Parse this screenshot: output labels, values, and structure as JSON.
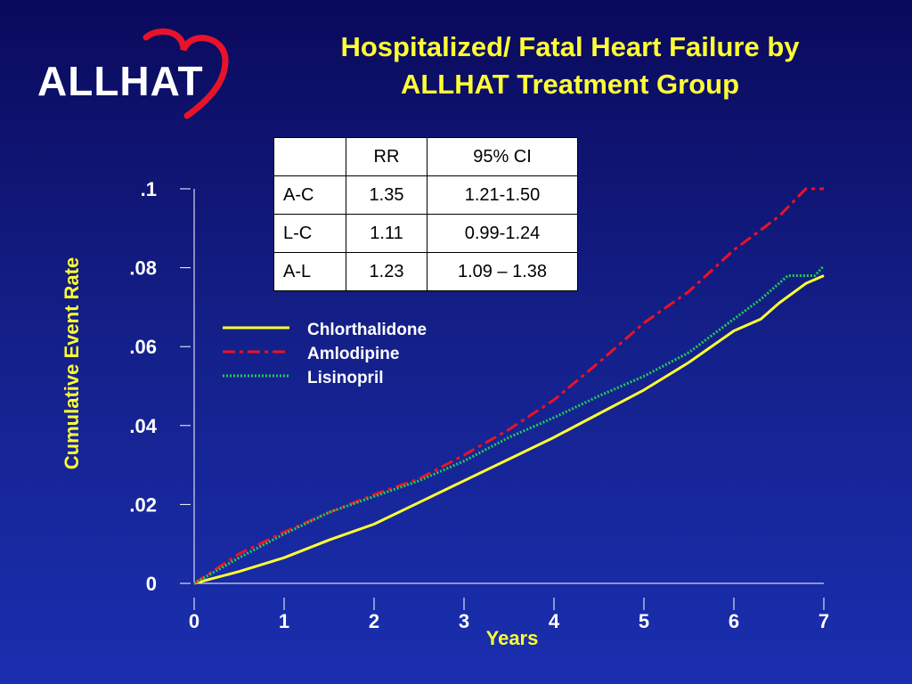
{
  "logo": {
    "text": "ALLHAT",
    "heart_color": "#e8132a"
  },
  "title": {
    "line1": "Hospitalized/ Fatal Heart Failure by",
    "line2": "ALLHAT Treatment Group"
  },
  "table": {
    "headers": [
      "",
      "RR",
      "95% CI"
    ],
    "rows": [
      [
        "A-C",
        "1.35",
        "1.21-1.50"
      ],
      [
        "L-C",
        "1.11",
        "0.99-1.24"
      ],
      [
        "A-L",
        "1.23",
        "1.09 – 1.38"
      ]
    ]
  },
  "chart_data": {
    "type": "line",
    "title": "Hospitalized/ Fatal Heart Failure by ALLHAT Treatment Group",
    "xlabel": "Years",
    "ylabel": "Cumulative Event Rate",
    "xlim": [
      0,
      7
    ],
    "ylim": [
      0,
      0.1
    ],
    "x_ticks": [
      0,
      1,
      2,
      3,
      4,
      5,
      6,
      7
    ],
    "x_tick_labels": [
      "0",
      "1",
      "2",
      "3",
      "4",
      "5",
      "6",
      "7"
    ],
    "y_ticks": [
      0,
      0.02,
      0.04,
      0.06,
      0.08,
      0.1
    ],
    "y_tick_labels": [
      "0",
      ".02",
      ".04",
      ".06",
      ".08",
      ".1"
    ],
    "legend_placement": "center",
    "series": [
      {
        "name": "Chlorthalidone",
        "color": "#ffff33",
        "style": "solid",
        "points": [
          [
            0,
            0
          ],
          [
            0.5,
            0.003
          ],
          [
            1,
            0.0065
          ],
          [
            1.5,
            0.011
          ],
          [
            2,
            0.015
          ],
          [
            2.5,
            0.0205
          ],
          [
            3,
            0.026
          ],
          [
            3.5,
            0.0315
          ],
          [
            4,
            0.037
          ],
          [
            4.5,
            0.043
          ],
          [
            5,
            0.049
          ],
          [
            5.5,
            0.056
          ],
          [
            6,
            0.064
          ],
          [
            6.3,
            0.067
          ],
          [
            6.5,
            0.071
          ],
          [
            6.8,
            0.076
          ],
          [
            7,
            0.078
          ]
        ]
      },
      {
        "name": "Amlodipine",
        "color": "#ee1122",
        "style": "dashdot",
        "points": [
          [
            0,
            0
          ],
          [
            0.5,
            0.0075
          ],
          [
            1,
            0.013
          ],
          [
            1.5,
            0.018
          ],
          [
            2,
            0.0225
          ],
          [
            2.5,
            0.0265
          ],
          [
            3,
            0.0325
          ],
          [
            3.5,
            0.039
          ],
          [
            4,
            0.0465
          ],
          [
            4.5,
            0.056
          ],
          [
            5,
            0.066
          ],
          [
            5.5,
            0.074
          ],
          [
            6,
            0.0845
          ],
          [
            6.5,
            0.093
          ],
          [
            6.8,
            0.1
          ],
          [
            7,
            0.1
          ]
        ]
      },
      {
        "name": "Lisinopril",
        "color": "#22cc55",
        "style": "dotted",
        "points": [
          [
            0,
            0
          ],
          [
            0.5,
            0.0065
          ],
          [
            1,
            0.0125
          ],
          [
            1.5,
            0.018
          ],
          [
            2,
            0.022
          ],
          [
            2.5,
            0.026
          ],
          [
            3,
            0.031
          ],
          [
            3.5,
            0.037
          ],
          [
            4,
            0.042
          ],
          [
            4.5,
            0.0475
          ],
          [
            5,
            0.0525
          ],
          [
            5.5,
            0.0585
          ],
          [
            6,
            0.067
          ],
          [
            6.3,
            0.072
          ],
          [
            6.6,
            0.078
          ],
          [
            6.9,
            0.078
          ],
          [
            7,
            0.0805
          ]
        ]
      }
    ]
  }
}
